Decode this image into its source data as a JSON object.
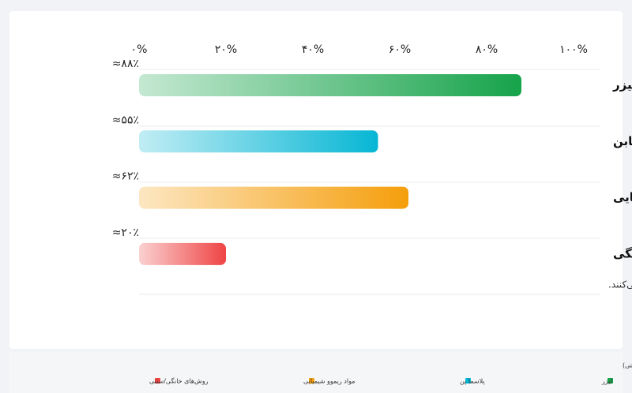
{
  "chart_data": {
    "type": "bar",
    "orientation": "horizontal",
    "categories": [
      "لیزر",
      "پلاسمابن",
      "مواد شیمیایی",
      "خانگی"
    ],
    "values": [
      88,
      55,
      62,
      20
    ],
    "value_labels": [
      "≈۸۸٪",
      "≈۵۵٪",
      "≈۶۲٪",
      "≈۲۰٪"
    ],
    "colors": [
      "#16a34a",
      "#06b6d4",
      "#f59e0b",
      "#ef4444"
    ],
    "xlim": [
      0,
      100
    ],
    "xticks": [
      {
        "value": 0,
        "label": "۰%"
      },
      {
        "value": 20,
        "label": "۲۰%"
      },
      {
        "value": 40,
        "label": "۴۰%"
      },
      {
        "value": 60,
        "label": "۶۰%"
      },
      {
        "value": 80,
        "label": "۸۰%"
      },
      {
        "value": 100,
        "label": "۱۰۰%"
      }
    ],
    "note": "اعداد تقریبی‌اند و بسته به نوع رنگ‌دانه، عمق تاتو، تیپ پوستی و مهارت اجراکننده تغییر می‌کنند.",
    "caption": "نمودار مقایسهٔ اثربخشی نسبی روش‌ها (لیزر، پلاسما پن، مواد شیمیایی، روش‌های خانگی/سنتی)",
    "legend": [
      {
        "name": "لیزر",
        "color": "#16a34a"
      },
      {
        "name": "پلاسما پن",
        "color": "#06b6d4"
      },
      {
        "name": "مواد ریموو شیمیایی",
        "color": "#f59e0b"
      },
      {
        "name": "روش‌های خانگی/سنتی",
        "color": "#ef4444"
      }
    ]
  }
}
